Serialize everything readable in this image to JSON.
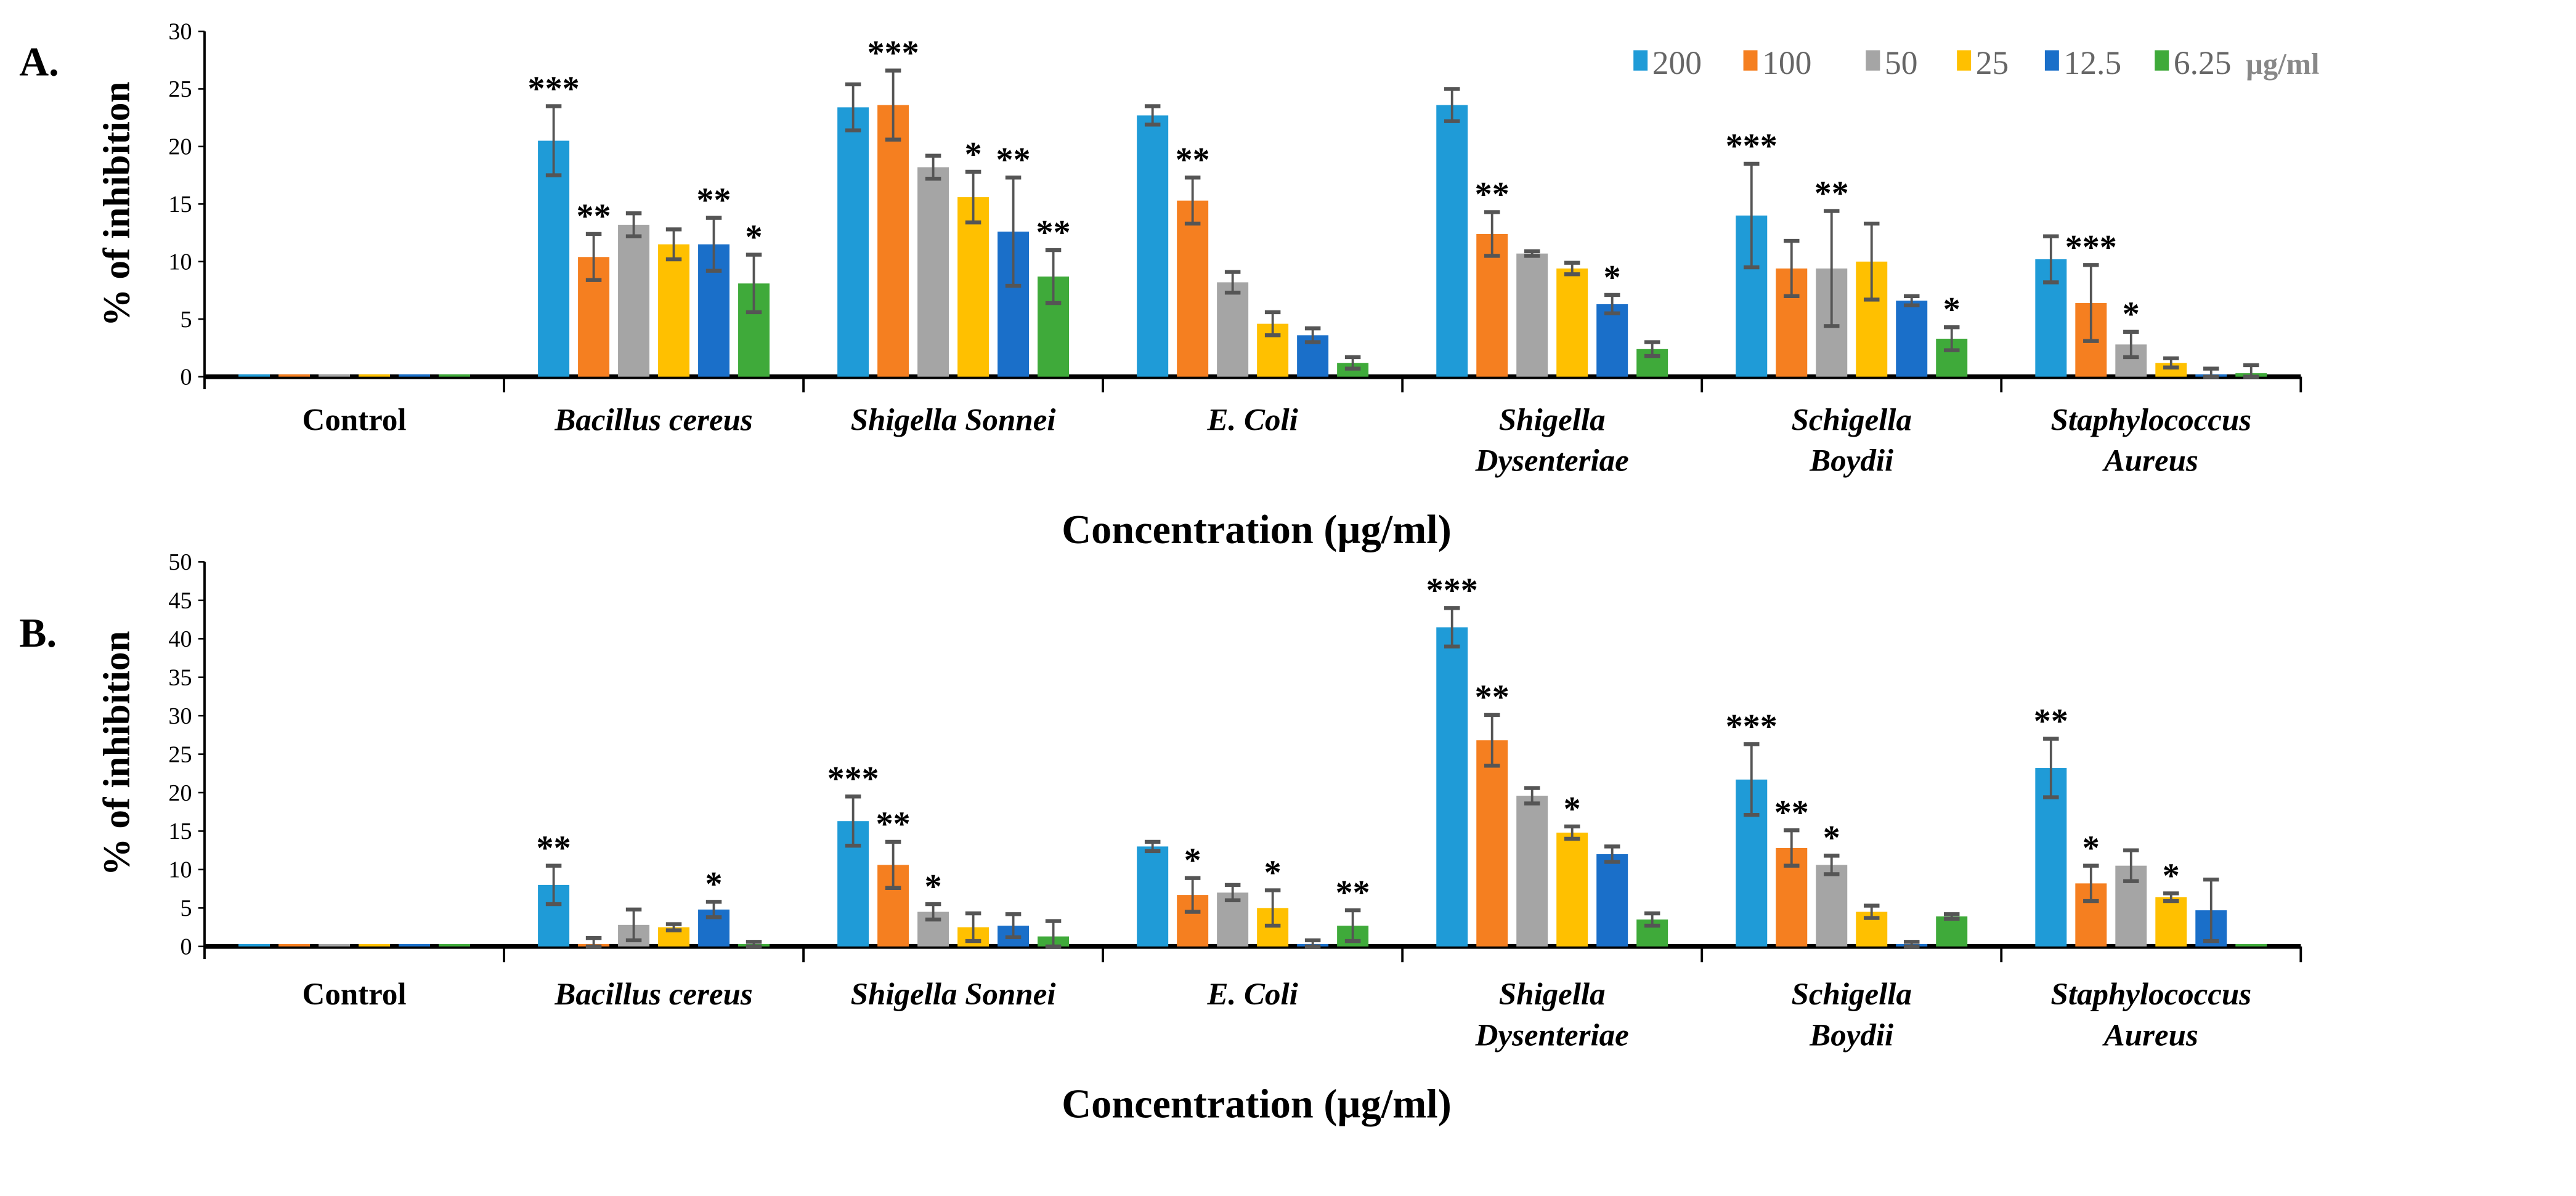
{
  "legend": {
    "items": [
      {
        "label": "200",
        "color": "#1f9bd7"
      },
      {
        "label": "100",
        "color": "#f57f20"
      },
      {
        "label": "50",
        "color": "#a5a5a5"
      },
      {
        "label": "25",
        "color": "#ffc000"
      },
      {
        "label": "12.5",
        "color": "#1a6fc9"
      },
      {
        "label": "6.25",
        "color": "#3faa3a"
      }
    ],
    "unit": "µg/ml"
  },
  "chart_data": [
    {
      "type": "bar",
      "panel": "A.",
      "ylabel": "% of inhibition",
      "xlabel": "Concentration (µg/ml)",
      "ylim": [
        0,
        30
      ],
      "yticks": [
        0,
        5,
        10,
        15,
        20,
        25,
        30
      ],
      "categories": [
        {
          "line1": "Control",
          "line2": "",
          "italic": false
        },
        {
          "line1": "Bacillus cereus",
          "line2": "",
          "italic": true
        },
        {
          "line1": "Shigella Sonnei",
          "line2": "",
          "italic": true
        },
        {
          "line1": "E. Coli",
          "line2": "",
          "italic": true
        },
        {
          "line1": "Shigella",
          "line2": "Dysenteriae",
          "italic": true
        },
        {
          "line1": "Schigella",
          "line2": "Boydii",
          "italic": true
        },
        {
          "line1": "Staphylococcus",
          "line2": "Aureus",
          "italic": true
        }
      ],
      "series": [
        {
          "name": "200",
          "values": [
            0,
            20.5,
            23.4,
            22.7,
            23.6,
            14.0,
            10.2
          ],
          "errors": [
            0,
            3.0,
            2.0,
            0.8,
            1.4,
            4.5,
            2.0
          ],
          "stars": [
            "",
            "***",
            "",
            "",
            "",
            "***",
            ""
          ]
        },
        {
          "name": "100",
          "values": [
            0,
            10.4,
            23.6,
            15.3,
            12.4,
            9.4,
            6.4
          ],
          "errors": [
            0,
            2.0,
            3.0,
            2.0,
            1.9,
            2.4,
            3.3
          ],
          "stars": [
            "",
            "**",
            "***",
            "**",
            "**",
            "",
            "***"
          ]
        },
        {
          "name": "50",
          "values": [
            0,
            13.2,
            18.2,
            8.2,
            10.7,
            9.4,
            2.8
          ],
          "errors": [
            0,
            1.0,
            1.0,
            0.9,
            0.2,
            5.0,
            1.1
          ],
          "stars": [
            "",
            "",
            "",
            "",
            "",
            "**",
            "*"
          ]
        },
        {
          "name": "25",
          "values": [
            0,
            11.5,
            15.6,
            4.6,
            9.4,
            10.0,
            1.2
          ],
          "errors": [
            0,
            1.3,
            2.2,
            1.0,
            0.5,
            3.3,
            0.4
          ],
          "stars": [
            "",
            "",
            "*",
            "",
            "",
            "",
            ""
          ]
        },
        {
          "name": "12.5",
          "values": [
            0,
            11.5,
            12.6,
            3.6,
            6.3,
            6.6,
            0.2
          ],
          "errors": [
            0,
            2.3,
            4.7,
            0.6,
            0.8,
            0.4,
            0.5
          ],
          "stars": [
            "",
            "**",
            "**",
            "",
            "*",
            "",
            ""
          ]
        },
        {
          "name": "6.25",
          "values": [
            0,
            8.1,
            8.7,
            1.2,
            2.4,
            3.3,
            0.3
          ],
          "errors": [
            0,
            2.5,
            2.3,
            0.5,
            0.6,
            1.0,
            0.7
          ],
          "stars": [
            "",
            "*",
            "**",
            "",
            "",
            "*",
            ""
          ]
        }
      ]
    },
    {
      "type": "bar",
      "panel": "B.",
      "ylabel": "% of inhibition",
      "xlabel": "Concentration (µg/ml)",
      "ylim": [
        0,
        50
      ],
      "yticks": [
        0,
        5,
        10,
        15,
        20,
        25,
        30,
        35,
        40,
        45,
        50
      ],
      "categories": [
        {
          "line1": "Control",
          "line2": "",
          "italic": false
        },
        {
          "line1": "Bacillus cereus",
          "line2": "",
          "italic": true
        },
        {
          "line1": "Shigella Sonnei",
          "line2": "",
          "italic": true
        },
        {
          "line1": "E. Coli",
          "line2": "",
          "italic": true
        },
        {
          "line1": "Shigella",
          "line2": "Dysenteriae",
          "italic": true
        },
        {
          "line1": "Schigella",
          "line2": "Boydii",
          "italic": true
        },
        {
          "line1": "Staphylococcus",
          "line2": "Aureus",
          "italic": true
        }
      ],
      "series": [
        {
          "name": "200",
          "values": [
            0,
            8.0,
            16.3,
            13.0,
            41.5,
            21.7,
            23.2
          ],
          "errors": [
            0,
            2.5,
            3.2,
            0.6,
            2.5,
            4.6,
            3.8
          ],
          "stars": [
            "",
            "**",
            "***",
            "",
            "***",
            "***",
            "**"
          ]
        },
        {
          "name": "100",
          "values": [
            0,
            0.3,
            10.6,
            6.7,
            26.8,
            12.8,
            8.2
          ],
          "errors": [
            0,
            0.8,
            3.0,
            2.2,
            3.3,
            2.3,
            2.3
          ],
          "stars": [
            "",
            "",
            "**",
            "*",
            "**",
            "**",
            "*"
          ]
        },
        {
          "name": "50",
          "values": [
            0,
            2.8,
            4.5,
            7.0,
            19.6,
            10.6,
            10.5
          ],
          "errors": [
            0,
            2.0,
            1.0,
            1.0,
            1.0,
            1.2,
            2.0
          ],
          "stars": [
            "",
            "",
            "*",
            "",
            "",
            "*",
            ""
          ]
        },
        {
          "name": "25",
          "values": [
            0,
            2.5,
            2.5,
            5.0,
            14.8,
            4.5,
            6.4
          ],
          "errors": [
            0,
            0.4,
            1.8,
            2.3,
            0.8,
            0.8,
            0.5
          ],
          "stars": [
            "",
            "",
            "",
            "*",
            "*",
            "",
            "*"
          ]
        },
        {
          "name": "12.5",
          "values": [
            0,
            4.8,
            2.7,
            0.3,
            12.0,
            0.3,
            4.7
          ],
          "errors": [
            0,
            1.0,
            1.5,
            0.5,
            1.0,
            0.3,
            4.0
          ],
          "stars": [
            "",
            "*",
            "",
            "",
            "",
            "",
            ""
          ]
        },
        {
          "name": "6.25",
          "values": [
            0,
            0.2,
            1.3,
            2.7,
            3.5,
            3.9,
            0
          ],
          "errors": [
            0,
            0.4,
            2.0,
            2.0,
            0.8,
            0.3,
            0
          ],
          "stars": [
            "",
            "",
            "",
            "**",
            "",
            "",
            ""
          ]
        }
      ]
    }
  ]
}
